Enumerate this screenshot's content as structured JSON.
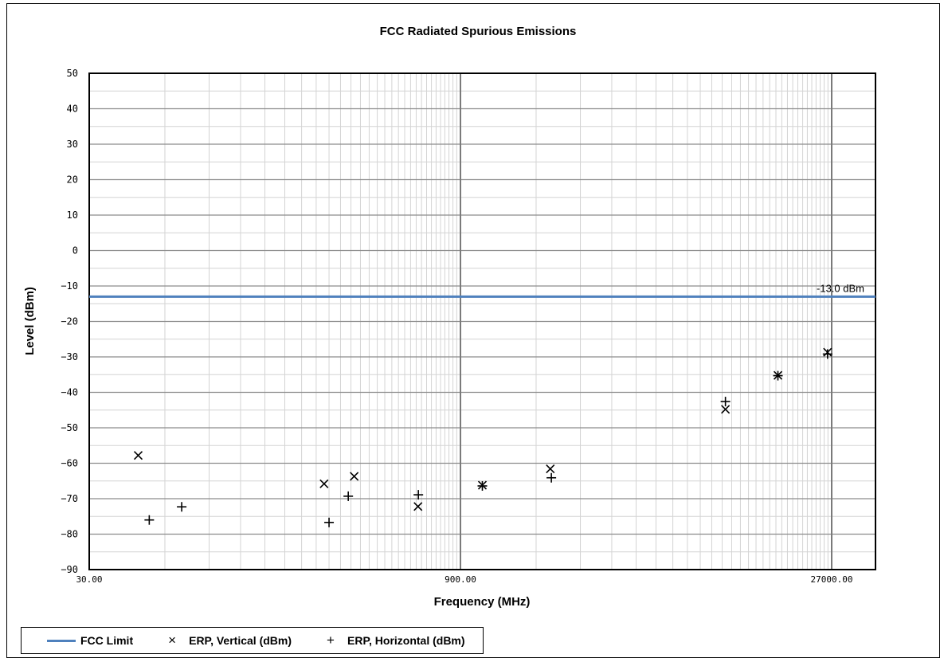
{
  "chart_data": {
    "type": "scatter",
    "title": "FCC Radiated Spurious Emissions",
    "xlabel": "Frequency (MHz)",
    "ylabel": "Level (dBm)",
    "x_scale": "log",
    "xlim": [
      30,
      60000
    ],
    "ylim": [
      -90,
      50
    ],
    "x_ticks": [
      30,
      900,
      27000
    ],
    "x_tick_labels": [
      "30.00",
      "900.00",
      "27000.00"
    ],
    "y_ticks": [
      50,
      40,
      30,
      20,
      10,
      0,
      -10,
      -20,
      -30,
      -40,
      -50,
      -60,
      -70,
      -80,
      -90
    ],
    "y_tick_labels": [
      "50",
      "40",
      "30",
      "20",
      "10",
      "0",
      "−10",
      "−20",
      "−30",
      "−40",
      "−50",
      "−60",
      "−70",
      "−80",
      "−90"
    ],
    "grid": true,
    "legend_position": "bottom-left",
    "limit": {
      "name": "FCC Limit",
      "value": -13.0,
      "label": "-13.0 dBm",
      "color": "#4f81bd"
    },
    "series": [
      {
        "name": "ERP, Vertical (dBm)",
        "marker": "×",
        "points": [
          {
            "x": 47,
            "y": -57.8
          },
          {
            "x": 258,
            "y": -65.8
          },
          {
            "x": 340,
            "y": -63.7
          },
          {
            "x": 610,
            "y": -72.2
          },
          {
            "x": 1100,
            "y": -66.2
          },
          {
            "x": 2050,
            "y": -61.6
          },
          {
            "x": 10200,
            "y": -44.8
          },
          {
            "x": 16500,
            "y": -35.2
          },
          {
            "x": 26000,
            "y": -28.7
          }
        ]
      },
      {
        "name": "ERP, Horizontal (dBm)",
        "marker": "+",
        "points": [
          {
            "x": 52,
            "y": -76.0
          },
          {
            "x": 70,
            "y": -72.3
          },
          {
            "x": 270,
            "y": -76.7
          },
          {
            "x": 322,
            "y": -69.3
          },
          {
            "x": 612,
            "y": -68.9
          },
          {
            "x": 1100,
            "y": -66.4
          },
          {
            "x": 2070,
            "y": -64.1
          },
          {
            "x": 10200,
            "y": -42.6
          },
          {
            "x": 16500,
            "y": -35.3
          },
          {
            "x": 26000,
            "y": -29.2
          }
        ]
      }
    ]
  }
}
